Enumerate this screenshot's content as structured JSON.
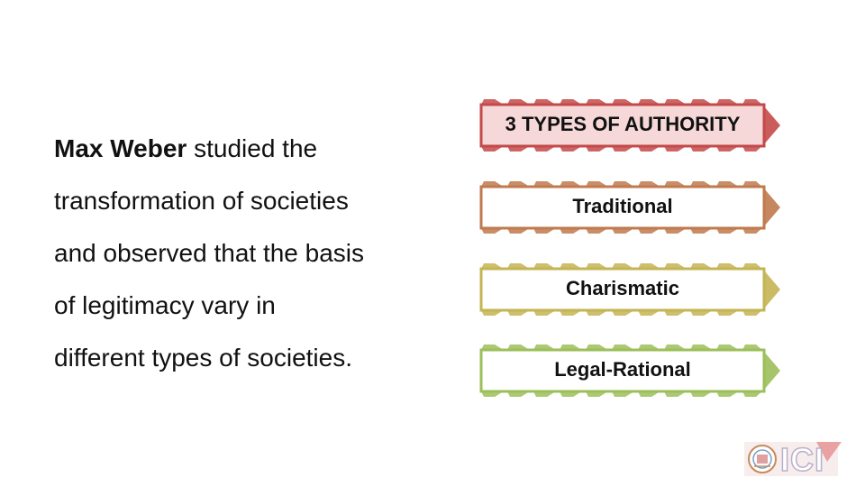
{
  "body": {
    "bold_lead": "Max Weber",
    "line1_rest": " studied the",
    "line2": "transformation of societies",
    "line3": "and observed that the basis",
    "line4": "of legitimacy vary in",
    "line5": "different types of societies."
  },
  "diagram": {
    "header": {
      "label": "3 TYPES OF AUTHORITY",
      "stroke_color": "#c44a4a",
      "fill_color": "#f6d8d8"
    },
    "items": [
      {
        "label": "Traditional",
        "stroke_color": "#c07a4e",
        "fill_color": "#ffffff"
      },
      {
        "label": "Charismatic",
        "stroke_color": "#c4b453",
        "fill_color": "#ffffff"
      },
      {
        "label": "Legal-Rational",
        "stroke_color": "#9cbf5a",
        "fill_color": "#ffffff"
      }
    ]
  },
  "logo": {
    "text": "ICI",
    "icon": "emblem-icon",
    "accent_color": "#e07a7a"
  }
}
